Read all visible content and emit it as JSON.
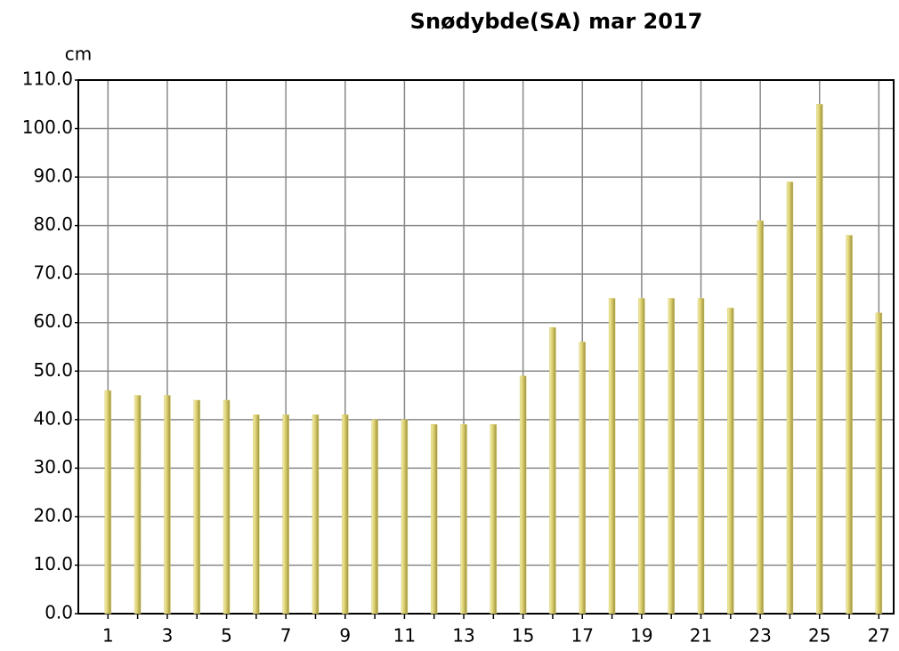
{
  "chart_data": {
    "type": "bar",
    "title": "Snødybde(SA) mar 2017",
    "y_label": "cm",
    "categories": [
      "1",
      null,
      "3",
      null,
      "5",
      null,
      "7",
      null,
      "9",
      null,
      "11",
      null,
      "13",
      null,
      "15",
      null,
      "17",
      null,
      "19",
      null,
      "21",
      null,
      "23",
      null,
      "25",
      null,
      "27"
    ],
    "values": [
      46,
      45,
      45,
      44,
      44,
      41,
      41,
      41,
      41,
      40,
      40,
      39,
      39,
      39,
      49,
      59,
      56,
      65,
      65,
      65,
      65,
      63,
      81,
      89,
      105,
      78,
      62
    ],
    "color": "#d9cd6c",
    "ylim": [
      0,
      110
    ],
    "yticks": [
      {
        "value": 0,
        "label": "0.0"
      },
      {
        "value": 10,
        "label": "10.0"
      },
      {
        "value": 20,
        "label": "20.0"
      },
      {
        "value": 30,
        "label": "30.0"
      },
      {
        "value": 40,
        "label": "40.0"
      },
      {
        "value": 50,
        "label": "50.0"
      },
      {
        "value": 60,
        "label": "60.0"
      },
      {
        "value": 70,
        "label": "70.0"
      },
      {
        "value": 80,
        "label": "80.0"
      },
      {
        "value": 90,
        "label": "90.0"
      },
      {
        "value": 100,
        "label": "100.0"
      },
      {
        "value": 110,
        "label": "110.0"
      }
    ],
    "grid": true
  }
}
